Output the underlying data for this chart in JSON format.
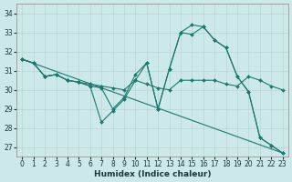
{
  "xlabel": "Humidex (Indice chaleur)",
  "ylabel": "",
  "bg_color": "#cce8e8",
  "line_color": "#1a7a6e",
  "grid_color": "#b8d4d4",
  "xlim": [
    -0.5,
    23.5
  ],
  "ylim": [
    26.5,
    34.5
  ],
  "yticks": [
    27,
    28,
    29,
    30,
    31,
    32,
    33,
    34
  ],
  "xticks": [
    0,
    1,
    2,
    3,
    4,
    5,
    6,
    7,
    8,
    9,
    10,
    11,
    12,
    13,
    14,
    15,
    16,
    17,
    18,
    19,
    20,
    21,
    22,
    23
  ],
  "lines": [
    {
      "x": [
        0,
        23
      ],
      "y": [
        31.6,
        26.7
      ],
      "marker": "None",
      "markersize": 0,
      "linewidth": 0.8
    },
    {
      "x": [
        0,
        1,
        2,
        3,
        4,
        5,
        6,
        7,
        8,
        9,
        10,
        11,
        12,
        13,
        14,
        15,
        16,
        17,
        18,
        19,
        20,
        21,
        22,
        23
      ],
      "y": [
        31.6,
        31.4,
        30.7,
        30.8,
        30.5,
        30.4,
        30.3,
        30.2,
        30.1,
        30.0,
        30.5,
        30.3,
        30.1,
        30.0,
        30.5,
        30.5,
        30.5,
        30.5,
        30.3,
        30.2,
        30.7,
        30.5,
        30.2,
        30.0
      ],
      "marker": "D",
      "markersize": 2.0,
      "linewidth": 0.8
    },
    {
      "x": [
        0,
        1,
        2,
        3,
        4,
        5,
        6,
        7,
        8,
        9,
        10,
        11,
        12,
        13,
        14,
        15,
        16,
        17,
        18,
        19,
        20,
        21,
        22,
        23
      ],
      "y": [
        31.6,
        31.4,
        30.7,
        30.8,
        30.5,
        30.4,
        30.2,
        28.3,
        28.9,
        29.5,
        30.5,
        31.4,
        29.0,
        31.1,
        33.0,
        32.9,
        33.3,
        32.6,
        32.2,
        30.7,
        29.9,
        27.5,
        27.1,
        26.7
      ],
      "marker": "D",
      "markersize": 2.0,
      "linewidth": 0.8
    },
    {
      "x": [
        0,
        1,
        2,
        3,
        4,
        5,
        6,
        7,
        8,
        9,
        10,
        11,
        12,
        13,
        14,
        15,
        16,
        17,
        18,
        19,
        20,
        21,
        22,
        23
      ],
      "y": [
        31.6,
        31.4,
        30.7,
        30.8,
        30.5,
        30.4,
        30.2,
        30.1,
        29.0,
        29.6,
        30.8,
        31.4,
        29.0,
        31.1,
        33.0,
        33.4,
        33.3,
        32.6,
        32.2,
        30.7,
        29.9,
        27.5,
        27.1,
        26.7
      ],
      "marker": "D",
      "markersize": 2.0,
      "linewidth": 0.8
    }
  ],
  "tick_fontsize": 5.5,
  "xlabel_fontsize": 6.5,
  "tick_color": "#1a3a3a",
  "spine_color": "#888888"
}
